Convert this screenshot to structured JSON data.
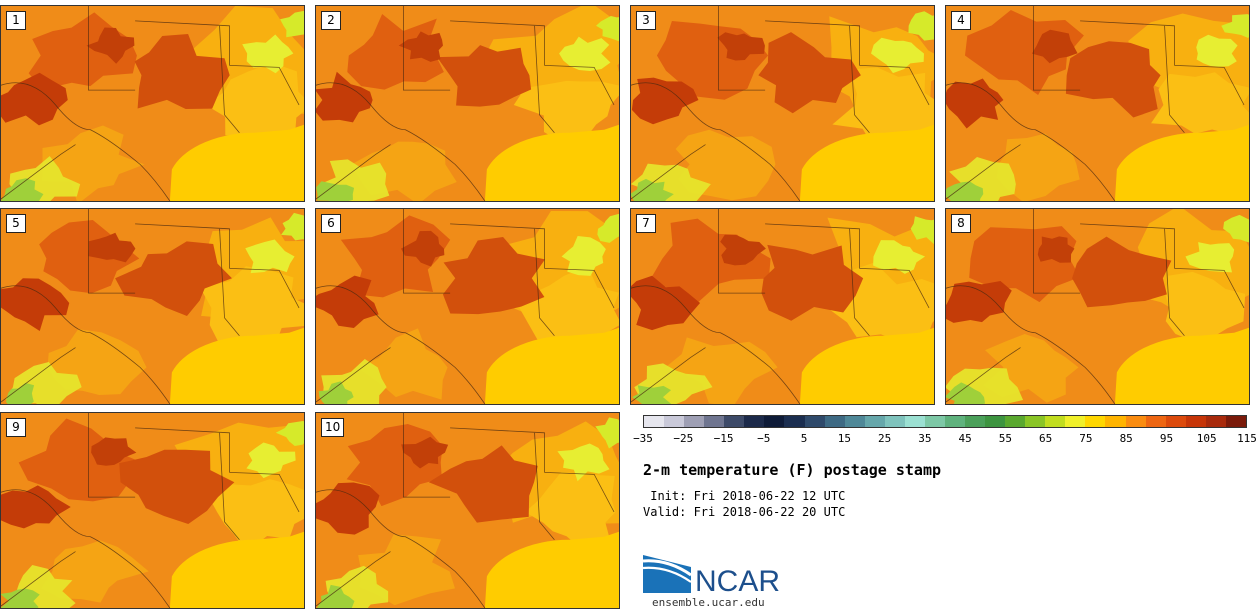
{
  "panels": [
    "1",
    "2",
    "3",
    "4",
    "5",
    "6",
    "7",
    "8",
    "9",
    "10"
  ],
  "colorbar": {
    "colors": [
      "#e6e6ee",
      "#c9c9d9",
      "#9e9fb4",
      "#6f7590",
      "#3d4a68",
      "#1c2a4a",
      "#0e1b38",
      "#1b2e50",
      "#2f4a6b",
      "#3e6a84",
      "#4f8898",
      "#66a7ab",
      "#7fc3bd",
      "#9be0d2",
      "#7dc8a6",
      "#5fb27d",
      "#4ba05a",
      "#3d9440",
      "#5aa82f",
      "#8ac526",
      "#c1dd1f",
      "#f0f02a",
      "#ffd700",
      "#ffb400",
      "#fa8c10",
      "#ee6612",
      "#dc4a0c",
      "#c63508",
      "#a82a0c",
      "#7a1a0a"
    ],
    "ticks": [
      "−35",
      "−25",
      "−15",
      "−5",
      "5",
      "15",
      "25",
      "35",
      "45",
      "55",
      "65",
      "75",
      "85",
      "95",
      "105",
      "115"
    ]
  },
  "title": "2-m temperature (F) postage stamp",
  "init": " Init: Fri 2018-06-22 12 UTC",
  "valid": "Valid: Fri 2018-06-22 20 UTC",
  "logo_text": "NCAR",
  "url": "ensemble.ucar.edu"
}
